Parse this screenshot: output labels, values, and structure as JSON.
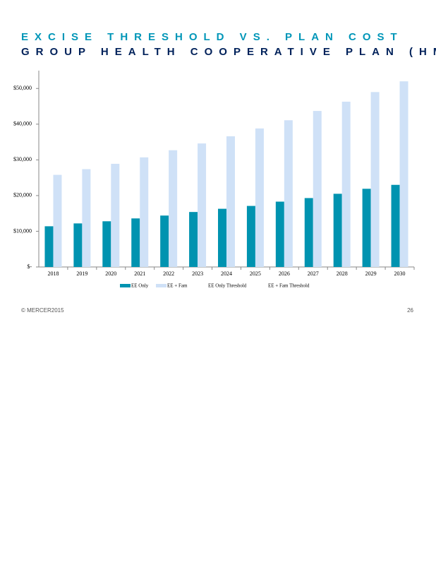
{
  "chart_data": {
    "type": "bar",
    "title": "EXCISE THRESHOLD VS. PLAN COST",
    "subtitle": "GROUP HEALTH COOPERATIVE PLAN (HMO)",
    "categories": [
      "2018",
      "2019",
      "2020",
      "2021",
      "2022",
      "2023",
      "2024",
      "2025",
      "2026",
      "2027",
      "2028",
      "2029",
      "2030"
    ],
    "series": [
      {
        "name": "EE Only",
        "color": "#0093b0",
        "values": [
          11400,
          12200,
          12800,
          13600,
          14400,
          15400,
          16300,
          17100,
          18300,
          19300,
          20500,
          21900,
          23000
        ]
      },
      {
        "name": "EE + Fam",
        "color": "#cfe1f7",
        "values": [
          25800,
          27400,
          28900,
          30700,
          32700,
          34600,
          36600,
          38800,
          41100,
          43700,
          46300,
          49000,
          52000
        ]
      },
      {
        "name": "EE Only Threshold",
        "values": [
          null,
          null,
          null,
          null,
          null,
          null,
          null,
          null,
          null,
          null,
          null,
          null,
          null
        ]
      },
      {
        "name": "EE + Fam Threshold",
        "values": [
          null,
          null,
          null,
          null,
          null,
          null,
          null,
          null,
          null,
          null,
          null,
          null,
          null
        ]
      }
    ],
    "ylim": [
      0,
      55000
    ],
    "yticks": [
      {
        "value": 0,
        "label": "$-"
      },
      {
        "value": 10000,
        "label": "$10,000"
      },
      {
        "value": 20000,
        "label": "$20,000"
      },
      {
        "value": 30000,
        "label": "$30,000"
      },
      {
        "value": 40000,
        "label": "$40,000"
      },
      {
        "value": 50000,
        "label": "$50,000"
      }
    ],
    "grid": false,
    "legend": "bottom"
  },
  "footer": {
    "copyright": "© MERCER2015",
    "page": "26"
  }
}
